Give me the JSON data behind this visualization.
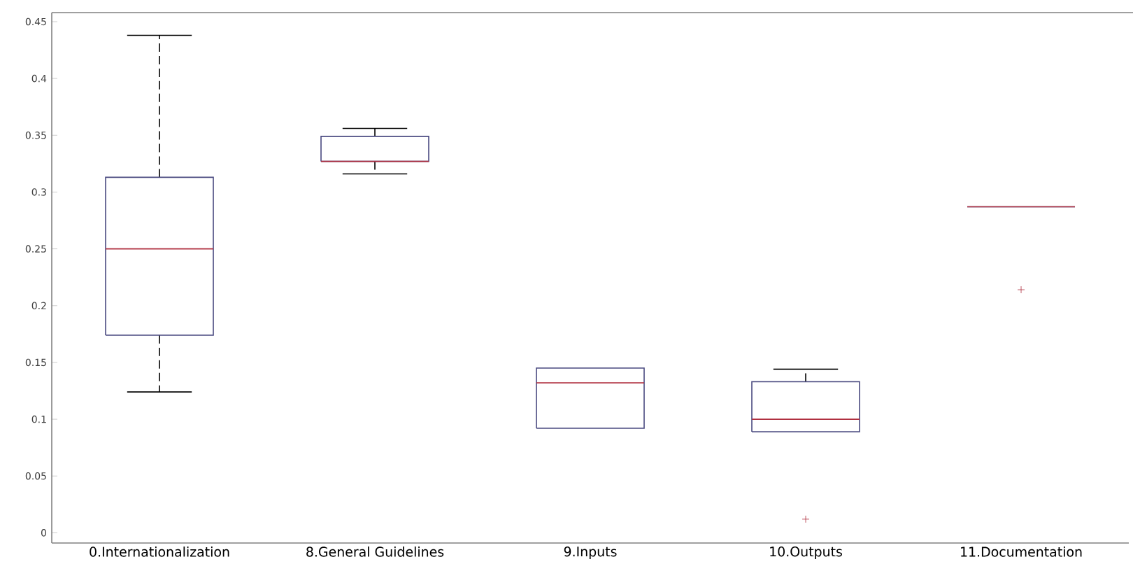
{
  "chart_data": {
    "type": "box",
    "categories": [
      "0.Internationalization",
      "8.General Guidelines",
      "9.Inputs",
      "10.Outputs",
      "11.Documentation"
    ],
    "color": "#4a4a80",
    "boxes": [
      {
        "low": 0.124,
        "q1": 0.174,
        "median": 0.25,
        "q3": 0.313,
        "high": 0.438
      },
      {
        "low": 0.316,
        "q1": 0.327,
        "median": 0.327,
        "q3": 0.349,
        "high": 0.356
      },
      {
        "low": 0.092,
        "q1": 0.092,
        "median": 0.132,
        "q3": 0.145,
        "high": 0.145
      },
      {
        "low": 0.089,
        "q1": 0.089,
        "median": 0.1,
        "q3": 0.133,
        "high": 0.144,
        "outliers": [
          0.012
        ]
      },
      {
        "low": 0.287,
        "q1": 0.287,
        "median": 0.287,
        "q3": 0.287,
        "high": 0.287,
        "outliers": [
          0.214
        ]
      }
    ],
    "ylim": [
      -0.009,
      0.458
    ],
    "yticks": [
      0,
      0.05,
      0.1,
      0.15,
      0.2,
      0.25,
      0.3,
      0.35,
      0.4,
      0.45
    ]
  }
}
